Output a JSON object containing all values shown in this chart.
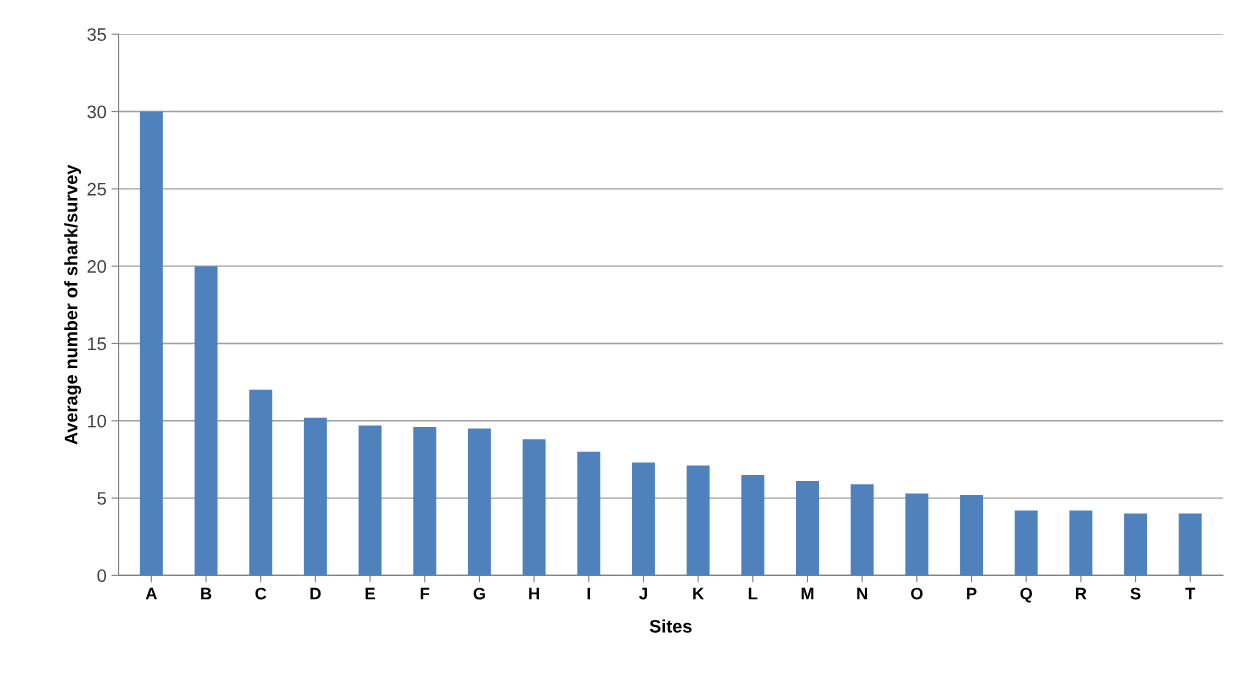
{
  "chart_data": {
    "type": "bar",
    "xlabel": "Sites",
    "ylabel": "Average number of shark/survey",
    "categories": [
      "A",
      "B",
      "C",
      "D",
      "E",
      "F",
      "G",
      "H",
      "I",
      "J",
      "K",
      "L",
      "M",
      "N",
      "O",
      "P",
      "Q",
      "R",
      "S",
      "T"
    ],
    "values": [
      30,
      20,
      12,
      10.2,
      9.7,
      9.6,
      9.5,
      8.8,
      8.0,
      7.3,
      7.1,
      6.5,
      6.1,
      5.9,
      5.3,
      5.2,
      4.2,
      4.2,
      4.0,
      4.0
    ],
    "color": "#4f81bd",
    "ylim": [
      0,
      35
    ],
    "yticks": [
      0,
      5,
      10,
      15,
      20,
      25,
      30,
      35
    ],
    "grid": "y",
    "legend": false
  }
}
